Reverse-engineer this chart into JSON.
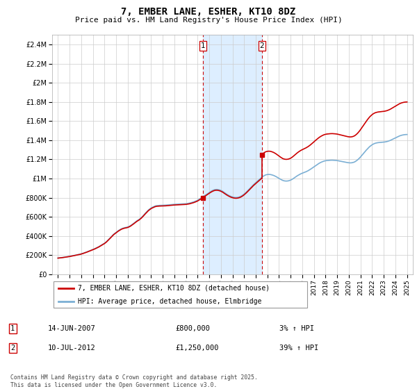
{
  "title": "7, EMBER LANE, ESHER, KT10 8DZ",
  "subtitle": "Price paid vs. HM Land Registry's House Price Index (HPI)",
  "legend_line1": "7, EMBER LANE, ESHER, KT10 8DZ (detached house)",
  "legend_line2": "HPI: Average price, detached house, Elmbridge",
  "sale1_label": "1",
  "sale1_date": "14-JUN-2007",
  "sale1_price": "£800,000",
  "sale1_hpi": "3% ↑ HPI",
  "sale1_year": 2007.45,
  "sale1_value": 800000,
  "sale2_label": "2",
  "sale2_date": "10-JUL-2012",
  "sale2_price": "£1,250,000",
  "sale2_hpi": "39% ↑ HPI",
  "sale2_year": 2012.53,
  "sale2_value": 1250000,
  "footer": "Contains HM Land Registry data © Crown copyright and database right 2025.\nThis data is licensed under the Open Government Licence v3.0.",
  "red_color": "#cc0000",
  "blue_color": "#7bafd4",
  "shading_color": "#ddeeff",
  "grid_color": "#cccccc",
  "ylim_min": 0,
  "ylim_max": 2500000,
  "yticks": [
    0,
    200000,
    400000,
    600000,
    800000,
    1000000,
    1200000,
    1400000,
    1600000,
    1800000,
    2000000,
    2200000,
    2400000
  ],
  "ytick_labels": [
    "£0",
    "£200K",
    "£400K",
    "£600K",
    "£800K",
    "£1M",
    "£1.2M",
    "£1.4M",
    "£1.6M",
    "£1.8M",
    "£2M",
    "£2.2M",
    "£2.4M"
  ],
  "xlim_start": 1994.5,
  "xlim_end": 2025.5,
  "hpi_years": [
    1995.0,
    1995.083,
    1995.167,
    1995.25,
    1995.333,
    1995.417,
    1995.5,
    1995.583,
    1995.667,
    1995.75,
    1995.833,
    1995.917,
    1996.0,
    1996.083,
    1996.167,
    1996.25,
    1996.333,
    1996.417,
    1996.5,
    1996.583,
    1996.667,
    1996.75,
    1996.833,
    1996.917,
    1997.0,
    1997.083,
    1997.167,
    1997.25,
    1997.333,
    1997.417,
    1997.5,
    1997.583,
    1997.667,
    1997.75,
    1997.833,
    1997.917,
    1998.0,
    1998.083,
    1998.167,
    1998.25,
    1998.333,
    1998.417,
    1998.5,
    1998.583,
    1998.667,
    1998.75,
    1998.833,
    1998.917,
    1999.0,
    1999.083,
    1999.167,
    1999.25,
    1999.333,
    1999.417,
    1999.5,
    1999.583,
    1999.667,
    1999.75,
    1999.833,
    1999.917,
    2000.0,
    2000.083,
    2000.167,
    2000.25,
    2000.333,
    2000.417,
    2000.5,
    2000.583,
    2000.667,
    2000.75,
    2000.833,
    2000.917,
    2001.0,
    2001.083,
    2001.167,
    2001.25,
    2001.333,
    2001.417,
    2001.5,
    2001.583,
    2001.667,
    2001.75,
    2001.833,
    2001.917,
    2002.0,
    2002.083,
    2002.167,
    2002.25,
    2002.333,
    2002.417,
    2002.5,
    2002.583,
    2002.667,
    2002.75,
    2002.833,
    2002.917,
    2003.0,
    2003.083,
    2003.167,
    2003.25,
    2003.333,
    2003.417,
    2003.5,
    2003.583,
    2003.667,
    2003.75,
    2003.833,
    2003.917,
    2004.0,
    2004.083,
    2004.167,
    2004.25,
    2004.333,
    2004.417,
    2004.5,
    2004.583,
    2004.667,
    2004.75,
    2004.833,
    2004.917,
    2005.0,
    2005.083,
    2005.167,
    2005.25,
    2005.333,
    2005.417,
    2005.5,
    2005.583,
    2005.667,
    2005.75,
    2005.833,
    2005.917,
    2006.0,
    2006.083,
    2006.167,
    2006.25,
    2006.333,
    2006.417,
    2006.5,
    2006.583,
    2006.667,
    2006.75,
    2006.833,
    2006.917,
    2007.0,
    2007.083,
    2007.167,
    2007.25,
    2007.333,
    2007.417,
    2007.5,
    2007.583,
    2007.667,
    2007.75,
    2007.833,
    2007.917,
    2008.0,
    2008.083,
    2008.167,
    2008.25,
    2008.333,
    2008.417,
    2008.5,
    2008.583,
    2008.667,
    2008.75,
    2008.833,
    2008.917,
    2009.0,
    2009.083,
    2009.167,
    2009.25,
    2009.333,
    2009.417,
    2009.5,
    2009.583,
    2009.667,
    2009.75,
    2009.833,
    2009.917,
    2010.0,
    2010.083,
    2010.167,
    2010.25,
    2010.333,
    2010.417,
    2010.5,
    2010.583,
    2010.667,
    2010.75,
    2010.833,
    2010.917,
    2011.0,
    2011.083,
    2011.167,
    2011.25,
    2011.333,
    2011.417,
    2011.5,
    2011.583,
    2011.667,
    2011.75,
    2011.833,
    2011.917,
    2012.0,
    2012.083,
    2012.167,
    2012.25,
    2012.333,
    2012.417,
    2012.5,
    2012.583,
    2012.667,
    2012.75,
    2012.833,
    2012.917,
    2013.0,
    2013.083,
    2013.167,
    2013.25,
    2013.333,
    2013.417,
    2013.5,
    2013.583,
    2013.667,
    2013.75,
    2013.833,
    2013.917,
    2014.0,
    2014.083,
    2014.167,
    2014.25,
    2014.333,
    2014.417,
    2014.5,
    2014.583,
    2014.667,
    2014.75,
    2014.833,
    2014.917,
    2015.0,
    2015.083,
    2015.167,
    2015.25,
    2015.333,
    2015.417,
    2015.5,
    2015.583,
    2015.667,
    2015.75,
    2015.833,
    2015.917,
    2016.0,
    2016.083,
    2016.167,
    2016.25,
    2016.333,
    2016.417,
    2016.5,
    2016.583,
    2016.667,
    2016.75,
    2016.833,
    2016.917,
    2017.0,
    2017.083,
    2017.167,
    2017.25,
    2017.333,
    2017.417,
    2017.5,
    2017.583,
    2017.667,
    2017.75,
    2017.833,
    2017.917,
    2018.0,
    2018.083,
    2018.167,
    2018.25,
    2018.333,
    2018.417,
    2018.5,
    2018.583,
    2018.667,
    2018.75,
    2018.833,
    2018.917,
    2019.0,
    2019.083,
    2019.167,
    2019.25,
    2019.333,
    2019.417,
    2019.5,
    2019.583,
    2019.667,
    2019.75,
    2019.833,
    2019.917,
    2020.0,
    2020.083,
    2020.167,
    2020.25,
    2020.333,
    2020.417,
    2020.5,
    2020.583,
    2020.667,
    2020.75,
    2020.833,
    2020.917,
    2021.0,
    2021.083,
    2021.167,
    2021.25,
    2021.333,
    2021.417,
    2021.5,
    2021.583,
    2021.667,
    2021.75,
    2021.833,
    2021.917,
    2022.0,
    2022.083,
    2022.167,
    2022.25,
    2022.333,
    2022.417,
    2022.5,
    2022.583,
    2022.667,
    2022.75,
    2022.833,
    2022.917,
    2023.0,
    2023.083,
    2023.167,
    2023.25,
    2023.333,
    2023.417,
    2023.5,
    2023.583,
    2023.667,
    2023.75,
    2023.833,
    2023.917,
    2024.0,
    2024.083,
    2024.167,
    2024.25,
    2024.333,
    2024.417,
    2024.5,
    2024.583,
    2024.667,
    2024.75,
    2024.833,
    2024.917,
    2025.0
  ],
  "hpi_values": [
    170000,
    171000,
    172000,
    173000,
    174500,
    176000,
    177500,
    179000,
    180500,
    182000,
    183500,
    185000,
    187000,
    189000,
    191500,
    193000,
    195000,
    197000,
    199500,
    201500,
    204000,
    206000,
    208000,
    210000,
    213000,
    216000,
    219500,
    223000,
    226500,
    230000,
    234000,
    238000,
    242000,
    246000,
    250000,
    254000,
    258000,
    262000,
    267000,
    272000,
    277000,
    282000,
    287000,
    293000,
    299000,
    305000,
    311000,
    317000,
    324000,
    332000,
    340000,
    350000,
    360000,
    370000,
    381000,
    392000,
    403000,
    413000,
    422000,
    430000,
    438000,
    446000,
    453000,
    460000,
    466000,
    472000,
    477000,
    481000,
    484000,
    487000,
    489000,
    491000,
    494000,
    498000,
    503000,
    509000,
    516000,
    523000,
    531000,
    539000,
    547000,
    555000,
    562000,
    568000,
    575000,
    583000,
    592000,
    602000,
    613000,
    624000,
    636000,
    647000,
    658000,
    668000,
    677000,
    685000,
    692000,
    698000,
    703000,
    708000,
    712000,
    715000,
    717000,
    718000,
    719000,
    719500,
    719800,
    720000,
    720000,
    720500,
    721000,
    722000,
    723000,
    724000,
    725000,
    726000,
    727000,
    728000,
    729000,
    730000,
    730500,
    731000,
    731500,
    732000,
    732500,
    733000,
    733500,
    734000,
    734500,
    735000,
    735500,
    736000,
    737000,
    738500,
    740000,
    742000,
    744000,
    747000,
    750000,
    753000,
    756000,
    760000,
    764000,
    768000,
    773000,
    779000,
    785000,
    791000,
    798000,
    805000,
    812000,
    819000,
    826000,
    833000,
    840000,
    847000,
    854000,
    861000,
    867000,
    873000,
    878000,
    882000,
    885000,
    886000,
    886500,
    885000,
    883000,
    880000,
    876000,
    871000,
    865000,
    858000,
    851000,
    844000,
    837000,
    831000,
    825000,
    820000,
    815000,
    811000,
    808000,
    805000,
    803000,
    802000,
    802000,
    803000,
    805000,
    808000,
    812000,
    817000,
    823000,
    830000,
    838000,
    847000,
    856000,
    866000,
    876000,
    887000,
    897000,
    908000,
    918000,
    929000,
    939000,
    948000,
    957000,
    966000,
    975000,
    984000,
    993000,
    1002000,
    1011000,
    1019000,
    1026000,
    1032000,
    1037000,
    1040000,
    1042000,
    1043000,
    1043000,
    1042000,
    1040000,
    1037000,
    1034000,
    1030000,
    1025000,
    1020000,
    1014000,
    1008000,
    1002000,
    996000,
    990000,
    985000,
    980000,
    977000,
    975000,
    974000,
    974000,
    975000,
    977000,
    980000,
    984000,
    989000,
    995000,
    1002000,
    1009000,
    1016000,
    1023000,
    1030000,
    1036000,
    1042000,
    1047000,
    1052000,
    1056000,
    1060000,
    1064000,
    1068000,
    1072000,
    1077000,
    1082000,
    1088000,
    1094000,
    1101000,
    1108000,
    1115000,
    1122000,
    1130000,
    1137000,
    1144000,
    1151000,
    1157000,
    1163000,
    1168000,
    1173000,
    1177000,
    1181000,
    1184000,
    1186000,
    1188000,
    1189000,
    1190000,
    1191000,
    1191500,
    1192000,
    1192000,
    1191500,
    1191000,
    1190000,
    1189000,
    1188000,
    1186000,
    1184000,
    1182000,
    1180000,
    1178000,
    1176000,
    1174000,
    1172000,
    1170000,
    1168000,
    1166000,
    1165000,
    1164000,
    1164000,
    1165000,
    1167000,
    1170000,
    1174000,
    1180000,
    1187000,
    1195000,
    1204000,
    1214000,
    1225000,
    1237000,
    1249000,
    1261000,
    1273000,
    1285000,
    1297000,
    1308000,
    1319000,
    1329000,
    1338000,
    1346000,
    1353000,
    1359000,
    1364000,
    1368000,
    1371000,
    1373000,
    1375000,
    1376000,
    1377000,
    1378000,
    1379000,
    1380000,
    1381000,
    1382000,
    1384000,
    1386000,
    1389000,
    1392000,
    1396000,
    1400000,
    1405000,
    1410000,
    1415000,
    1420000,
    1425000,
    1430000,
    1435000,
    1440000,
    1444000,
    1448000,
    1451000,
    1454000,
    1456000,
    1458000,
    1459000,
    1460000,
    1460000
  ],
  "xtick_years": [
    1995,
    1996,
    1997,
    1998,
    1999,
    2000,
    2001,
    2002,
    2003,
    2004,
    2005,
    2006,
    2007,
    2008,
    2009,
    2010,
    2011,
    2012,
    2013,
    2014,
    2015,
    2016,
    2017,
    2018,
    2019,
    2020,
    2021,
    2022,
    2023,
    2024,
    2025
  ]
}
